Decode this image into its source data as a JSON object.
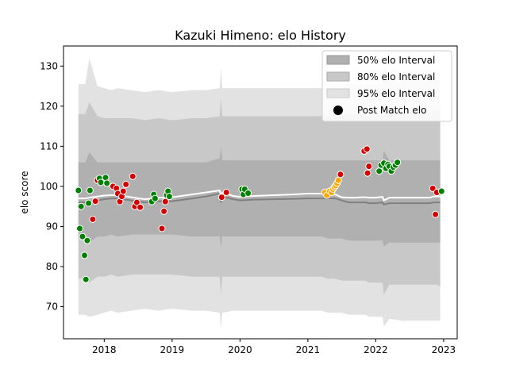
{
  "chart_data": {
    "type": "area",
    "title": "Kazuki Himeno: elo History",
    "xlabel": "",
    "ylabel": "elo score",
    "xlim": [
      2017.4,
      2023.2
    ],
    "ylim": [
      62,
      135
    ],
    "x_ticks": [
      2018,
      2019,
      2020,
      2021,
      2022,
      2023
    ],
    "x_tick_labels": [
      "2018",
      "2019",
      "2020",
      "2021",
      "2022",
      "2023"
    ],
    "y_ticks": [
      70,
      80,
      90,
      100,
      110,
      120,
      130
    ],
    "y_tick_labels": [
      "70",
      "80",
      "90",
      "100",
      "110",
      "120",
      "130"
    ],
    "legend": {
      "placement": "top-right",
      "entries": [
        "50% elo Interval",
        "80% elo Interval",
        "95% elo Interval",
        "Post Match elo"
      ]
    },
    "colors": {
      "band50": "#b0b0b0",
      "band80": "#c8c8c8",
      "band95": "#e2e2e2",
      "mean_line": "#808080",
      "median_line": "#ffffff",
      "win": "#008000",
      "loss": "#d40000",
      "recent": "#ffa500"
    },
    "bands": {
      "x": [
        2017.62,
        2017.72,
        2017.78,
        2017.9,
        2018.0,
        2018.1,
        2018.2,
        2018.4,
        2018.6,
        2018.8,
        2019.0,
        2019.3,
        2019.5,
        2019.7,
        2019.72,
        2019.74,
        2019.9,
        2020.0,
        2020.2,
        2020.5,
        2020.8,
        2021.0,
        2021.2,
        2021.3,
        2021.4,
        2021.5,
        2021.6,
        2021.7,
        2021.8,
        2021.85,
        2021.9,
        2022.0,
        2022.1,
        2022.12,
        2022.2,
        2022.4,
        2022.6,
        2022.8,
        2022.85,
        2022.9,
        2022.95
      ],
      "p95_upper": [
        125.5,
        125.5,
        132,
        125,
        124.5,
        124,
        124.5,
        124,
        123.5,
        124,
        123.5,
        124,
        124,
        124.5,
        129.5,
        124.5,
        124.5,
        124.5,
        124.5,
        124.5,
        124.5,
        124.5,
        124.5,
        124.5,
        125,
        125,
        125.5,
        125.5,
        125.5,
        125.5,
        125.5,
        125.5,
        126,
        130,
        126,
        126,
        126,
        126,
        126.5,
        126.5,
        126.5
      ],
      "p95_lower": [
        68,
        68,
        67.5,
        68,
        68.5,
        69,
        68.5,
        69,
        69.5,
        69,
        69.5,
        69,
        69,
        68.5,
        64.5,
        68.5,
        69,
        69,
        69,
        69,
        69,
        69,
        69,
        68.5,
        68.5,
        68.5,
        68,
        68,
        68,
        68,
        67.5,
        67.5,
        67.5,
        65,
        67,
        66.5,
        66.5,
        66.5,
        66.5,
        66.5,
        66.5
      ],
      "p80_upper": [
        118,
        118,
        121,
        117.5,
        117,
        117,
        117,
        117,
        116.5,
        117,
        116.5,
        117,
        117,
        117.5,
        122,
        117.5,
        117.5,
        117.5,
        117.5,
        117.5,
        117.5,
        117.5,
        117.5,
        117.5,
        118,
        118,
        118,
        118,
        118,
        118,
        118,
        118,
        118.5,
        121,
        118.5,
        118.5,
        118.5,
        118.5,
        119,
        119,
        119
      ],
      "p80_lower": [
        77,
        77,
        76,
        77.5,
        77.5,
        78,
        77.5,
        78,
        78,
        78,
        78,
        77.5,
        77.5,
        77.5,
        73,
        77.5,
        77.5,
        77.5,
        77.5,
        77.5,
        77.5,
        77.5,
        77.5,
        77,
        77,
        76.5,
        76.5,
        76.5,
        76.5,
        76.5,
        76,
        76,
        76,
        73,
        75.5,
        75.5,
        75.5,
        75.5,
        75.5,
        75.5,
        75
      ],
      "p50_upper": [
        106,
        106,
        108.5,
        106,
        106,
        106,
        106,
        106,
        106,
        106,
        106,
        106,
        106,
        107,
        110,
        106.5,
        106.5,
        106.5,
        106.5,
        106.5,
        106.5,
        106.5,
        106.5,
        106.5,
        106.5,
        106.5,
        106.5,
        106.5,
        106.5,
        106.5,
        106.5,
        106.5,
        106.5,
        109,
        106.5,
        106.5,
        106.5,
        106.5,
        106.5,
        106.5,
        106.5
      ],
      "p50_lower": [
        87,
        87,
        86,
        87.5,
        87.5,
        88,
        87.5,
        88,
        88,
        88,
        88,
        87.5,
        87.5,
        87.5,
        85,
        87.5,
        87.5,
        87.5,
        87.5,
        87.5,
        87.5,
        87.5,
        87.5,
        87,
        87,
        87,
        86.5,
        86.5,
        86.5,
        86.5,
        86.5,
        86.5,
        86.5,
        85,
        86,
        86,
        86,
        86,
        86,
        86,
        86
      ],
      "mean": [
        96,
        96,
        96.2,
        96.5,
        96.8,
        97,
        97,
        96.5,
        96,
        96.3,
        96.3,
        97,
        97.5,
        98.2,
        96,
        97.5,
        96.8,
        96.5,
        96.7,
        96.8,
        96.9,
        97,
        97,
        97,
        97,
        96.5,
        96,
        96,
        96,
        96,
        95.8,
        95.8,
        96,
        95.5,
        95.8,
        95.8,
        95.8,
        95.8,
        96,
        96,
        96
      ],
      "median": [
        97,
        97,
        97.2,
        97.5,
        97.7,
        97.8,
        97.8,
        97.3,
        96.8,
        97.2,
        97.3,
        98,
        98.5,
        99,
        97.5,
        98.5,
        97.6,
        97.4,
        97.6,
        97.8,
        98,
        98.2,
        98.2,
        98,
        98,
        97.3,
        97.2,
        97.2,
        97.3,
        97.3,
        97.2,
        97.2,
        97.4,
        96.5,
        97.2,
        97.2,
        97.2,
        97.2,
        97.5,
        97.5,
        97.5
      ]
    },
    "series": [
      {
        "name": "Post Match elo",
        "points": [
          {
            "x": 2017.62,
            "y": 99,
            "result": "win"
          },
          {
            "x": 2017.64,
            "y": 89.5,
            "result": "win"
          },
          {
            "x": 2017.66,
            "y": 95,
            "result": "win"
          },
          {
            "x": 2017.68,
            "y": 87.5,
            "result": "win"
          },
          {
            "x": 2017.71,
            "y": 82.8,
            "result": "win"
          },
          {
            "x": 2017.73,
            "y": 76.8,
            "result": "win"
          },
          {
            "x": 2017.75,
            "y": 86.5,
            "result": "win"
          },
          {
            "x": 2017.77,
            "y": 95.8,
            "result": "win"
          },
          {
            "x": 2017.79,
            "y": 99,
            "result": "win"
          },
          {
            "x": 2017.83,
            "y": 91.8,
            "result": "loss"
          },
          {
            "x": 2017.87,
            "y": 96.3,
            "result": "loss"
          },
          {
            "x": 2017.9,
            "y": 101.5,
            "result": "loss"
          },
          {
            "x": 2017.93,
            "y": 102,
            "result": "win"
          },
          {
            "x": 2017.95,
            "y": 101,
            "result": "win"
          },
          {
            "x": 2018.02,
            "y": 102.2,
            "result": "win"
          },
          {
            "x": 2018.04,
            "y": 100.8,
            "result": "win"
          },
          {
            "x": 2018.13,
            "y": 100,
            "result": "loss"
          },
          {
            "x": 2018.18,
            "y": 99.5,
            "result": "loss"
          },
          {
            "x": 2018.2,
            "y": 98.2,
            "result": "loss"
          },
          {
            "x": 2018.23,
            "y": 96.2,
            "result": "loss"
          },
          {
            "x": 2018.26,
            "y": 97.5,
            "result": "loss"
          },
          {
            "x": 2018.28,
            "y": 98.8,
            "result": "loss"
          },
          {
            "x": 2018.32,
            "y": 100.5,
            "result": "loss"
          },
          {
            "x": 2018.42,
            "y": 102.5,
            "result": "loss"
          },
          {
            "x": 2018.45,
            "y": 95,
            "result": "loss"
          },
          {
            "x": 2018.48,
            "y": 96,
            "result": "loss"
          },
          {
            "x": 2018.53,
            "y": 94.8,
            "result": "loss"
          },
          {
            "x": 2018.7,
            "y": 96.2,
            "result": "win"
          },
          {
            "x": 2018.73,
            "y": 98,
            "result": "win"
          },
          {
            "x": 2018.75,
            "y": 97,
            "result": "win"
          },
          {
            "x": 2018.85,
            "y": 89.5,
            "result": "loss"
          },
          {
            "x": 2018.88,
            "y": 93.8,
            "result": "loss"
          },
          {
            "x": 2018.9,
            "y": 96.2,
            "result": "loss"
          },
          {
            "x": 2018.92,
            "y": 97.8,
            "result": "win"
          },
          {
            "x": 2018.94,
            "y": 98.8,
            "result": "win"
          },
          {
            "x": 2018.96,
            "y": 97.5,
            "result": "win"
          },
          {
            "x": 2019.73,
            "y": 97.3,
            "result": "loss"
          },
          {
            "x": 2019.8,
            "y": 98.5,
            "result": "loss"
          },
          {
            "x": 2020.03,
            "y": 99.3,
            "result": "win"
          },
          {
            "x": 2020.05,
            "y": 98,
            "result": "win"
          },
          {
            "x": 2020.07,
            "y": 99.3,
            "result": "win"
          },
          {
            "x": 2020.12,
            "y": 98.3,
            "result": "win"
          },
          {
            "x": 2021.25,
            "y": 98.5,
            "result": "recent"
          },
          {
            "x": 2021.28,
            "y": 97.8,
            "result": "recent"
          },
          {
            "x": 2021.32,
            "y": 98.8,
            "result": "recent"
          },
          {
            "x": 2021.35,
            "y": 98.5,
            "result": "recent"
          },
          {
            "x": 2021.37,
            "y": 99.3,
            "result": "recent"
          },
          {
            "x": 2021.39,
            "y": 99.8,
            "result": "recent"
          },
          {
            "x": 2021.41,
            "y": 100.2,
            "result": "recent"
          },
          {
            "x": 2021.43,
            "y": 100.8,
            "result": "recent"
          },
          {
            "x": 2021.45,
            "y": 101.5,
            "result": "recent"
          },
          {
            "x": 2021.48,
            "y": 103,
            "result": "loss"
          },
          {
            "x": 2021.83,
            "y": 108.8,
            "result": "loss"
          },
          {
            "x": 2021.87,
            "y": 109.3,
            "result": "loss"
          },
          {
            "x": 2021.88,
            "y": 103.3,
            "result": "loss"
          },
          {
            "x": 2021.9,
            "y": 105,
            "result": "loss"
          },
          {
            "x": 2022.05,
            "y": 103.8,
            "result": "win"
          },
          {
            "x": 2022.08,
            "y": 105.3,
            "result": "win"
          },
          {
            "x": 2022.12,
            "y": 105.8,
            "result": "win"
          },
          {
            "x": 2022.15,
            "y": 104.5,
            "result": "win"
          },
          {
            "x": 2022.18,
            "y": 105.5,
            "result": "win"
          },
          {
            "x": 2022.2,
            "y": 105,
            "result": "win"
          },
          {
            "x": 2022.23,
            "y": 103.8,
            "result": "win"
          },
          {
            "x": 2022.26,
            "y": 104.8,
            "result": "win"
          },
          {
            "x": 2022.29,
            "y": 105.3,
            "result": "win"
          },
          {
            "x": 2022.32,
            "y": 106,
            "result": "win"
          },
          {
            "x": 2022.84,
            "y": 99.5,
            "result": "loss"
          },
          {
            "x": 2022.88,
            "y": 93,
            "result": "loss"
          },
          {
            "x": 2022.9,
            "y": 98.5,
            "result": "loss"
          },
          {
            "x": 2022.97,
            "y": 98.8,
            "result": "win"
          }
        ]
      }
    ],
    "grid": false
  }
}
